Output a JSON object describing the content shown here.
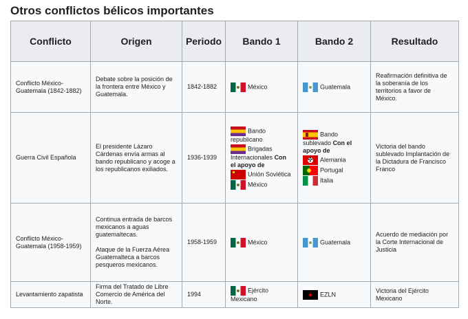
{
  "heading": "Otros conflictos bélicos importantes",
  "columns": {
    "conflict": "Conflicto",
    "origin": "Origen",
    "period": "Periodo",
    "side1": "Bando 1",
    "side2": "Bando 2",
    "result": "Resultado"
  },
  "rows": [
    {
      "conflict": "Conflicto México-Guatemala (1842-1882)",
      "origin": "Debate sobre la posición de la frontera entre México y Guatemala.",
      "period": "1842-1882",
      "side1": [
        {
          "flag": "mexico-flag-icon",
          "text": "México"
        }
      ],
      "side2": [
        {
          "flag": "guatemala-flag-icon",
          "text": "Guatemala"
        }
      ],
      "result": "Reafirmación definitiva de la soberanía de los territorios a favor de México."
    },
    {
      "conflict": "Guerra Civil Española",
      "origin": "El presidente Lázaro Cárdenas envía armas al bando republicano y acoge a los republicanos exiliados.",
      "period": "1936-1939",
      "side1": [
        {
          "flag": "spain-republic-flag-icon",
          "text": "Bando republicano"
        },
        {
          "flag": "spain-republic-flag-icon",
          "text": "Brigadas Internacionales",
          "support_label": "Con el apoyo de"
        },
        {
          "flag": "soviet-union-flag-icon",
          "text": "Unión Soviética"
        },
        {
          "flag": "mexico-flag-icon",
          "text": "México"
        }
      ],
      "side2": [
        {
          "flag": "spain-nationalist-flag-icon",
          "text": "Bando sublevado",
          "support_label": "Con el apoyo de"
        },
        {
          "flag": "germany-flag-icon",
          "text": "Alemania"
        },
        {
          "flag": "portugal-flag-icon",
          "text": "Portugal"
        },
        {
          "flag": "italy-flag-icon",
          "text": "Italia"
        }
      ],
      "result": "Victoria del bando sublevado Implantación de la Dictadura de Francisco Franco"
    },
    {
      "conflict": "Conflicto México-Guatemala (1958-1959)",
      "origin": "Continua entrada de barcos mexicanos a aguas guatemaltecas.",
      "origin2": "Ataque de la Fuerza Aérea Guatemalteca a barcos pesqueros mexicanos.",
      "period": "1958-1959",
      "side1": [
        {
          "flag": "mexico-flag-icon",
          "text": "México"
        }
      ],
      "side2": [
        {
          "flag": "guatemala-flag-icon",
          "text": "Guatemala"
        }
      ],
      "result": "Acuerdo de mediación por la Corte Internacional de Justicia"
    },
    {
      "conflict": "Levantamiento zapatista",
      "origin": "Firma del Tratado de Libre Comercio de América del Norte.",
      "period": "1994",
      "side1": [
        {
          "flag": "mexico-flag-icon",
          "text": "Ejército Mexicano"
        }
      ],
      "side2": [
        {
          "flag": "ezln-flag-icon",
          "text": "EZLN"
        }
      ],
      "result": "Victoria del Ejército Mexicano"
    }
  ]
}
